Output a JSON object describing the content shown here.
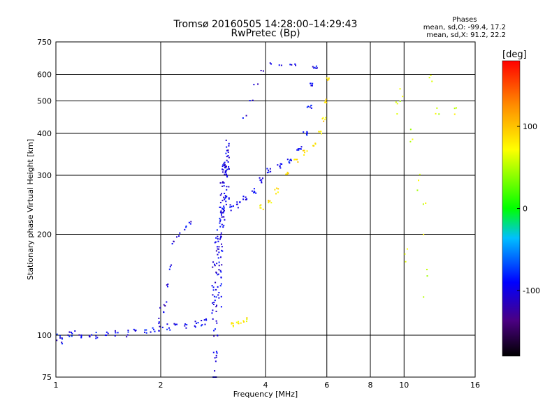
{
  "header": {
    "title": "Tromsø 20160505 14:28:00–14:29:43",
    "subtitle": "RwPretec (Bp)"
  },
  "phases": {
    "title": "Phases",
    "line_o": "mean, sd,O: -99.4, 17.2",
    "line_x": "mean, sd,X:  91.2, 22.2"
  },
  "chart_data": {
    "type": "scatter",
    "xlabel": "Frequency [MHz]",
    "ylabel": "Stationary phase Virtual Height [km]",
    "xscale": "log",
    "yscale": "log",
    "xlim": [
      1,
      16
    ],
    "ylim": [
      75,
      750
    ],
    "xticks": [
      1,
      2,
      4,
      6,
      8,
      10,
      16
    ],
    "yticks": [
      75,
      100,
      200,
      300,
      400,
      500,
      600,
      750
    ],
    "grid_x": [
      2,
      4,
      6,
      8,
      10
    ],
    "grid_y": [
      100,
      200,
      300,
      400,
      500,
      600
    ],
    "grid": true,
    "colorbar": {
      "label": "[deg]",
      "ticks": [
        -100,
        0,
        100
      ],
      "range": [
        -180,
        180
      ],
      "colormap": "rainbow"
    },
    "traces": [
      {
        "points": [
          [
            1.02,
            99
          ],
          [
            1.05,
            96
          ],
          [
            1.08,
            100
          ],
          [
            1.12,
            101
          ],
          [
            1.18,
            100
          ],
          [
            1.25,
            101
          ],
          [
            1.3,
            100
          ],
          [
            1.4,
            101
          ],
          [
            1.5,
            102
          ],
          [
            1.6,
            101
          ],
          [
            1.7,
            102
          ],
          [
            1.8,
            103
          ],
          [
            1.9,
            104
          ],
          [
            2.0,
            105
          ],
          [
            2.1,
            106
          ],
          [
            2.2,
            107
          ],
          [
            2.35,
            106
          ],
          [
            2.5,
            108
          ],
          [
            2.6,
            109
          ],
          [
            2.7,
            110
          ]
        ],
        "spread": 2.5,
        "phase": -95,
        "count": 4
      },
      {
        "points": [
          [
            2.0,
            110
          ],
          [
            2.02,
            118
          ],
          [
            2.05,
            125
          ],
          [
            2.1,
            140
          ],
          [
            2.15,
            160
          ],
          [
            2.18,
            190
          ]
        ],
        "spread": 3,
        "phase": -100,
        "count": 3
      },
      {
        "points": [
          [
            2.25,
            200
          ],
          [
            2.35,
            208
          ],
          [
            2.45,
            215
          ]
        ],
        "spread": 4,
        "phase": -100,
        "count": 3
      },
      {
        "points": [
          [
            2.85,
            110
          ],
          [
            2.9,
            140
          ],
          [
            2.95,
            180
          ],
          [
            3.0,
            230
          ],
          [
            3.05,
            280
          ],
          [
            3.1,
            330
          ]
        ],
        "spread": 60,
        "phase": -100,
        "count": 30
      },
      {
        "points": [
          [
            3.1,
            260
          ],
          [
            3.2,
            240
          ],
          [
            3.35,
            245
          ],
          [
            3.5,
            255
          ],
          [
            3.7,
            270
          ],
          [
            3.9,
            290
          ],
          [
            4.1,
            310
          ],
          [
            4.4,
            320
          ],
          [
            4.7,
            330
          ],
          [
            5.0,
            360
          ],
          [
            5.2,
            400
          ],
          [
            5.35,
            480
          ],
          [
            5.45,
            560
          ],
          [
            5.55,
            630
          ]
        ],
        "spread": 5,
        "phase": -95,
        "count": 6
      },
      {
        "points": [
          [
            3.9,
            240
          ],
          [
            4.1,
            250
          ],
          [
            4.3,
            270
          ],
          [
            4.6,
            300
          ],
          [
            4.9,
            330
          ],
          [
            5.2,
            350
          ],
          [
            5.5,
            370
          ],
          [
            5.75,
            400
          ],
          [
            5.9,
            440
          ],
          [
            6.0,
            500
          ],
          [
            6.05,
            580
          ]
        ],
        "spread": 6,
        "phase": 85,
        "count": 5
      },
      {
        "points": [
          [
            3.2,
            108
          ],
          [
            3.35,
            110
          ],
          [
            3.5,
            111
          ]
        ],
        "spread": 2,
        "phase": 80,
        "count": 5
      },
      {
        "points": [
          [
            3.5,
            450
          ],
          [
            3.65,
            500
          ],
          [
            3.75,
            560
          ],
          [
            3.9,
            620
          ],
          [
            4.1,
            650
          ],
          [
            4.4,
            640
          ],
          [
            4.7,
            645
          ],
          [
            4.9,
            640
          ]
        ],
        "spread": 6,
        "phase": -100,
        "count": 2
      },
      {
        "points": [
          [
            9.5,
            480
          ],
          [
            9.8,
            520
          ],
          [
            10.5,
            400
          ],
          [
            11.0,
            300
          ],
          [
            11.5,
            220
          ],
          [
            11.5,
            130
          ],
          [
            12.0,
            600
          ],
          [
            12.5,
            450
          ],
          [
            10.2,
            160
          ],
          [
            14.0,
            450
          ]
        ],
        "spread": 30,
        "phase": 60,
        "count": 3
      }
    ]
  }
}
